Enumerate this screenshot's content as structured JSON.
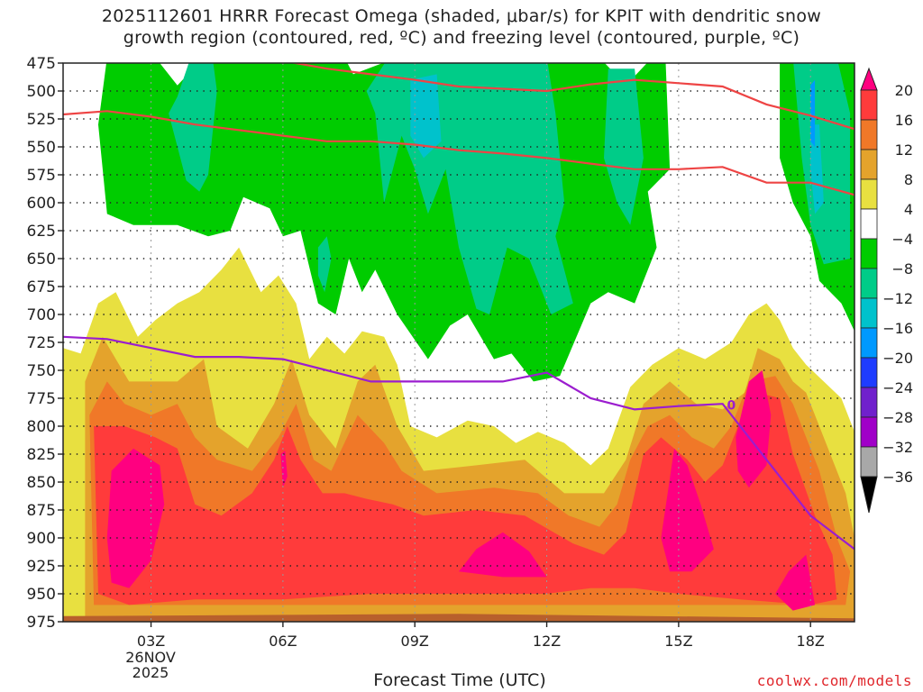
{
  "title_lines": [
    "2025112601 HRRR Forecast Omega (shaded, μbar/s) for KPIT with dendritic snow",
    "growth region (contoured, red, ºC) and freezing level (contoured, purple, ºC)"
  ],
  "x_axis_label": "Forecast Time (UTC)",
  "credit": "coolwx.com/models",
  "date_label": [
    "26NOV",
    "2025"
  ],
  "chart_data": {
    "type": "heatmap",
    "x_unit": "forecast hour (UTC)",
    "xlim": [
      1,
      19
    ],
    "x_ticks": [
      {
        "hour": 3,
        "label": "03Z"
      },
      {
        "hour": 6,
        "label": "06Z"
      },
      {
        "hour": 9,
        "label": "09Z"
      },
      {
        "hour": 12,
        "label": "12Z"
      },
      {
        "hour": 15,
        "label": "15Z"
      },
      {
        "hour": 18,
        "label": "18Z"
      }
    ],
    "y_unit": "pressure (mb)",
    "ylim": [
      975,
      475
    ],
    "y_ticks": [
      475,
      500,
      525,
      550,
      575,
      600,
      625,
      650,
      675,
      700,
      725,
      750,
      775,
      800,
      825,
      850,
      875,
      900,
      925,
      950,
      975
    ],
    "grid": true,
    "colorbar": {
      "labels": [
        "20",
        "16",
        "12",
        "8",
        "4",
        "−4",
        "−8",
        "−12",
        "−16",
        "−20",
        "−24",
        "−28",
        "−32",
        "−36"
      ],
      "colors": [
        "#ff0080",
        "#ff3b3b",
        "#f07828",
        "#e4a32c",
        "#e8e040",
        "#ffffff",
        "#00cc00",
        "#00cc88",
        "#00c2cc",
        "#0099ff",
        "#1e3cff",
        "#7020cc",
        "#a000c8",
        "#a8a8a8",
        "#000000"
      ]
    },
    "omega_shading": {
      "strong_rising_magenta": [
        "#ff0080",
        "#ef0a93"
      ],
      "rising_greens": [
        "#00cc00",
        "#00cc88",
        "#00c2cc",
        "#0099ff"
      ],
      "sinking_warm": [
        "#e8e040",
        "#e4a32c",
        "#f07828",
        "#ff3b3b",
        "#ff0080"
      ],
      "surface_band_color": "#b8602c"
    },
    "dgz_contours": {
      "color": "#ee4444",
      "series": [
        {
          "x": [
            1,
            2,
            3,
            4,
            5,
            6,
            7,
            8,
            9,
            10,
            11,
            12,
            13,
            14,
            15,
            16,
            17,
            18,
            19
          ],
          "y": [
            521,
            518,
            523,
            530,
            535,
            540,
            545,
            545,
            548,
            553,
            556,
            560,
            565,
            570,
            570,
            568,
            582,
            582,
            593
          ]
        },
        {
          "x": [
            4,
            5,
            6,
            7,
            8,
            9,
            10,
            11,
            12,
            13,
            14,
            15,
            16,
            17,
            18,
            19
          ],
          "y": [
            472,
            474,
            473,
            480,
            485,
            490,
            496,
            498,
            500,
            494,
            490,
            493,
            496,
            512,
            522,
            534
          ]
        }
      ]
    },
    "freezing_level": {
      "color": "#9b1dcf",
      "label": "0",
      "x": [
        1,
        2,
        3,
        4,
        5,
        6,
        7,
        8,
        9,
        10,
        11,
        12,
        13,
        14,
        15,
        16,
        17,
        18,
        19
      ],
      "y": [
        720,
        722,
        730,
        738,
        738,
        740,
        750,
        760,
        760,
        760,
        760,
        752,
        775,
        785,
        782,
        780,
        830,
        880,
        910
      ]
    }
  }
}
